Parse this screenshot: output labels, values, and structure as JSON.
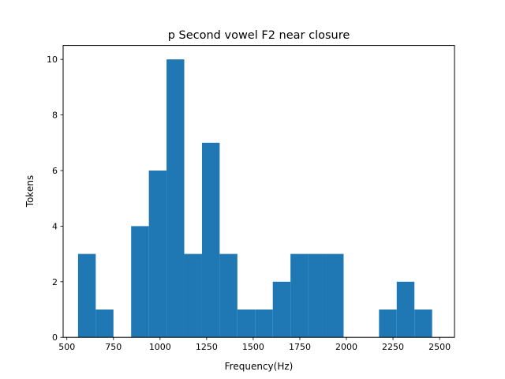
{
  "chart_data": {
    "type": "bar",
    "title": "p Second vowel F2 near closure",
    "xlabel": "Frequency(Hz)",
    "ylabel": "Tokens",
    "xlim": [
      480,
      2580
    ],
    "ylim": [
      0,
      10.5
    ],
    "xticks": [
      500,
      750,
      1000,
      1250,
      1500,
      1750,
      2000,
      2250,
      2500
    ],
    "yticks": [
      0,
      2,
      4,
      6,
      8,
      10
    ],
    "grid": false,
    "bar_color": "#1f77b4",
    "bins": [
      {
        "x0": 560,
        "x1": 655,
        "count": 3
      },
      {
        "x0": 655,
        "x1": 750,
        "count": 1
      },
      {
        "x0": 750,
        "x1": 845,
        "count": 0
      },
      {
        "x0": 845,
        "x1": 940,
        "count": 4
      },
      {
        "x0": 940,
        "x1": 1035,
        "count": 6
      },
      {
        "x0": 1035,
        "x1": 1130,
        "count": 10
      },
      {
        "x0": 1130,
        "x1": 1225,
        "count": 3
      },
      {
        "x0": 1225,
        "x1": 1320,
        "count": 7
      },
      {
        "x0": 1320,
        "x1": 1415,
        "count": 3
      },
      {
        "x0": 1415,
        "x1": 1510,
        "count": 1
      },
      {
        "x0": 1510,
        "x1": 1605,
        "count": 1
      },
      {
        "x0": 1605,
        "x1": 1700,
        "count": 2
      },
      {
        "x0": 1700,
        "x1": 1795,
        "count": 3
      },
      {
        "x0": 1795,
        "x1": 1890,
        "count": 3
      },
      {
        "x0": 1890,
        "x1": 1985,
        "count": 3
      },
      {
        "x0": 1985,
        "x1": 2080,
        "count": 0
      },
      {
        "x0": 2080,
        "x1": 2175,
        "count": 0
      },
      {
        "x0": 2175,
        "x1": 2270,
        "count": 1
      },
      {
        "x0": 2270,
        "x1": 2365,
        "count": 2
      },
      {
        "x0": 2365,
        "x1": 2460,
        "count": 1
      }
    ]
  }
}
